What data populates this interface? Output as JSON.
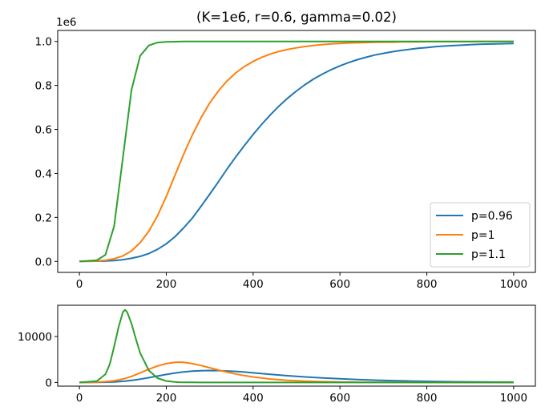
{
  "chart_data": [
    {
      "type": "line",
      "title": "(K=1e6, r=0.6, gamma=0.02)",
      "offset_label": "1e6",
      "xlabel": "",
      "ylabel": "",
      "xlim": [
        -50,
        1050
      ],
      "ylim": [
        -0.05,
        1.05
      ],
      "xticks": [
        0,
        200,
        400,
        600,
        800,
        1000
      ],
      "xtick_labels": [
        "0",
        "200",
        "400",
        "600",
        "800",
        "1000"
      ],
      "yticks": [
        0.0,
        0.2,
        0.4,
        0.6,
        0.8,
        1.0
      ],
      "ytick_labels": [
        "0.0",
        "0.2",
        "0.4",
        "0.6",
        "0.8",
        "1.0"
      ],
      "grid": false,
      "legend_position": "lower-right",
      "x": [
        0,
        40,
        60,
        80,
        100,
        120,
        140,
        160,
        180,
        200,
        220,
        240,
        260,
        280,
        300,
        320,
        340,
        360,
        380,
        400,
        420,
        440,
        460,
        480,
        500,
        520,
        540,
        560,
        580,
        600,
        620,
        640,
        660,
        680,
        700,
        720,
        740,
        760,
        780,
        800,
        820,
        840,
        860,
        880,
        900,
        920,
        940,
        960,
        980,
        1000
      ],
      "series": [
        {
          "name": "p=0.96",
          "color": "#1f77b4",
          "values": [
            0.0,
            0.001,
            0.002,
            0.004,
            0.008,
            0.014,
            0.023,
            0.036,
            0.055,
            0.08,
            0.112,
            0.152,
            0.197,
            0.25,
            0.305,
            0.362,
            0.42,
            0.475,
            0.527,
            0.577,
            0.624,
            0.667,
            0.707,
            0.743,
            0.775,
            0.804,
            0.83,
            0.852,
            0.872,
            0.889,
            0.904,
            0.917,
            0.928,
            0.938,
            0.946,
            0.953,
            0.959,
            0.964,
            0.969,
            0.972,
            0.976,
            0.979,
            0.981,
            0.983,
            0.985,
            0.987,
            0.988,
            0.989,
            0.99,
            0.991
          ]
        },
        {
          "name": "p=1",
          "color": "#ff7f0e",
          "values": [
            0.0,
            0.002,
            0.005,
            0.012,
            0.025,
            0.048,
            0.085,
            0.138,
            0.208,
            0.295,
            0.391,
            0.487,
            0.575,
            0.653,
            0.72,
            0.775,
            0.82,
            0.857,
            0.886,
            0.909,
            0.928,
            0.943,
            0.955,
            0.964,
            0.971,
            0.977,
            0.982,
            0.986,
            0.989,
            0.991,
            0.993,
            0.994,
            0.995,
            0.996,
            0.997,
            0.997,
            0.998,
            0.998,
            0.998,
            0.999,
            0.999,
            0.999,
            0.999,
            0.999,
            0.999,
            1.0,
            1.0,
            1.0,
            1.0,
            1.0
          ]
        },
        {
          "name": "p=1.1",
          "color": "#2ca02c",
          "values": [
            0.0,
            0.005,
            0.03,
            0.16,
            0.47,
            0.78,
            0.935,
            0.982,
            0.995,
            0.998,
            0.999,
            1.0,
            1.0,
            1.0,
            1.0,
            1.0,
            1.0,
            1.0,
            1.0,
            1.0,
            1.0,
            1.0,
            1.0,
            1.0,
            1.0,
            1.0,
            1.0,
            1.0,
            1.0,
            1.0,
            1.0,
            1.0,
            1.0,
            1.0,
            1.0,
            1.0,
            1.0,
            1.0,
            1.0,
            1.0,
            1.0,
            1.0,
            1.0,
            1.0,
            1.0,
            1.0,
            1.0,
            1.0,
            1.0,
            1.0
          ]
        }
      ]
    },
    {
      "type": "line",
      "title": "",
      "xlabel": "",
      "ylabel": "",
      "xlim": [
        -50,
        1050
      ],
      "ylim": [
        -800,
        16800
      ],
      "xticks": [
        0,
        200,
        400,
        600,
        800,
        1000
      ],
      "xtick_labels": [
        "0",
        "200",
        "400",
        "600",
        "800",
        "1000"
      ],
      "yticks": [
        0,
        10000
      ],
      "ytick_labels": [
        "0",
        "10000"
      ],
      "grid": false,
      "x": [
        0,
        40,
        60,
        70,
        80,
        90,
        100,
        105,
        110,
        120,
        130,
        140,
        160,
        180,
        200,
        220,
        230,
        240,
        260,
        280,
        300,
        320,
        340,
        360,
        380,
        400,
        440,
        480,
        520,
        560,
        600,
        640,
        680,
        720,
        760,
        800,
        860,
        920,
        1000
      ],
      "series": [
        {
          "color": "#1f77b4",
          "values": [
            0,
            20,
            50,
            80,
            120,
            180,
            260,
            300,
            350,
            450,
            580,
            720,
            1050,
            1400,
            1750,
            2050,
            2180,
            2300,
            2470,
            2570,
            2600,
            2580,
            2500,
            2400,
            2260,
            2100,
            1780,
            1470,
            1200,
            980,
            800,
            640,
            500,
            400,
            310,
            240,
            160,
            110,
            70
          ]
        },
        {
          "color": "#ff7f0e",
          "values": [
            0,
            80,
            180,
            260,
            380,
            540,
            760,
            880,
            1010,
            1330,
            1700,
            2100,
            2900,
            3600,
            4100,
            4380,
            4420,
            4380,
            4100,
            3700,
            3200,
            2700,
            2250,
            1850,
            1500,
            1200,
            750,
            460,
            280,
            170,
            100,
            60,
            40,
            25,
            15,
            10,
            5,
            3,
            2
          ]
        },
        {
          "color": "#2ca02c",
          "values": [
            0,
            300,
            1800,
            4000,
            7800,
            12000,
            15300,
            15800,
            15300,
            12800,
            9500,
            6400,
            2600,
            950,
            320,
            110,
            60,
            35,
            12,
            4,
            1,
            0,
            0,
            0,
            0,
            0,
            0,
            0,
            0,
            0,
            0,
            0,
            0,
            0,
            0,
            0,
            0,
            0,
            0
          ]
        }
      ]
    }
  ]
}
